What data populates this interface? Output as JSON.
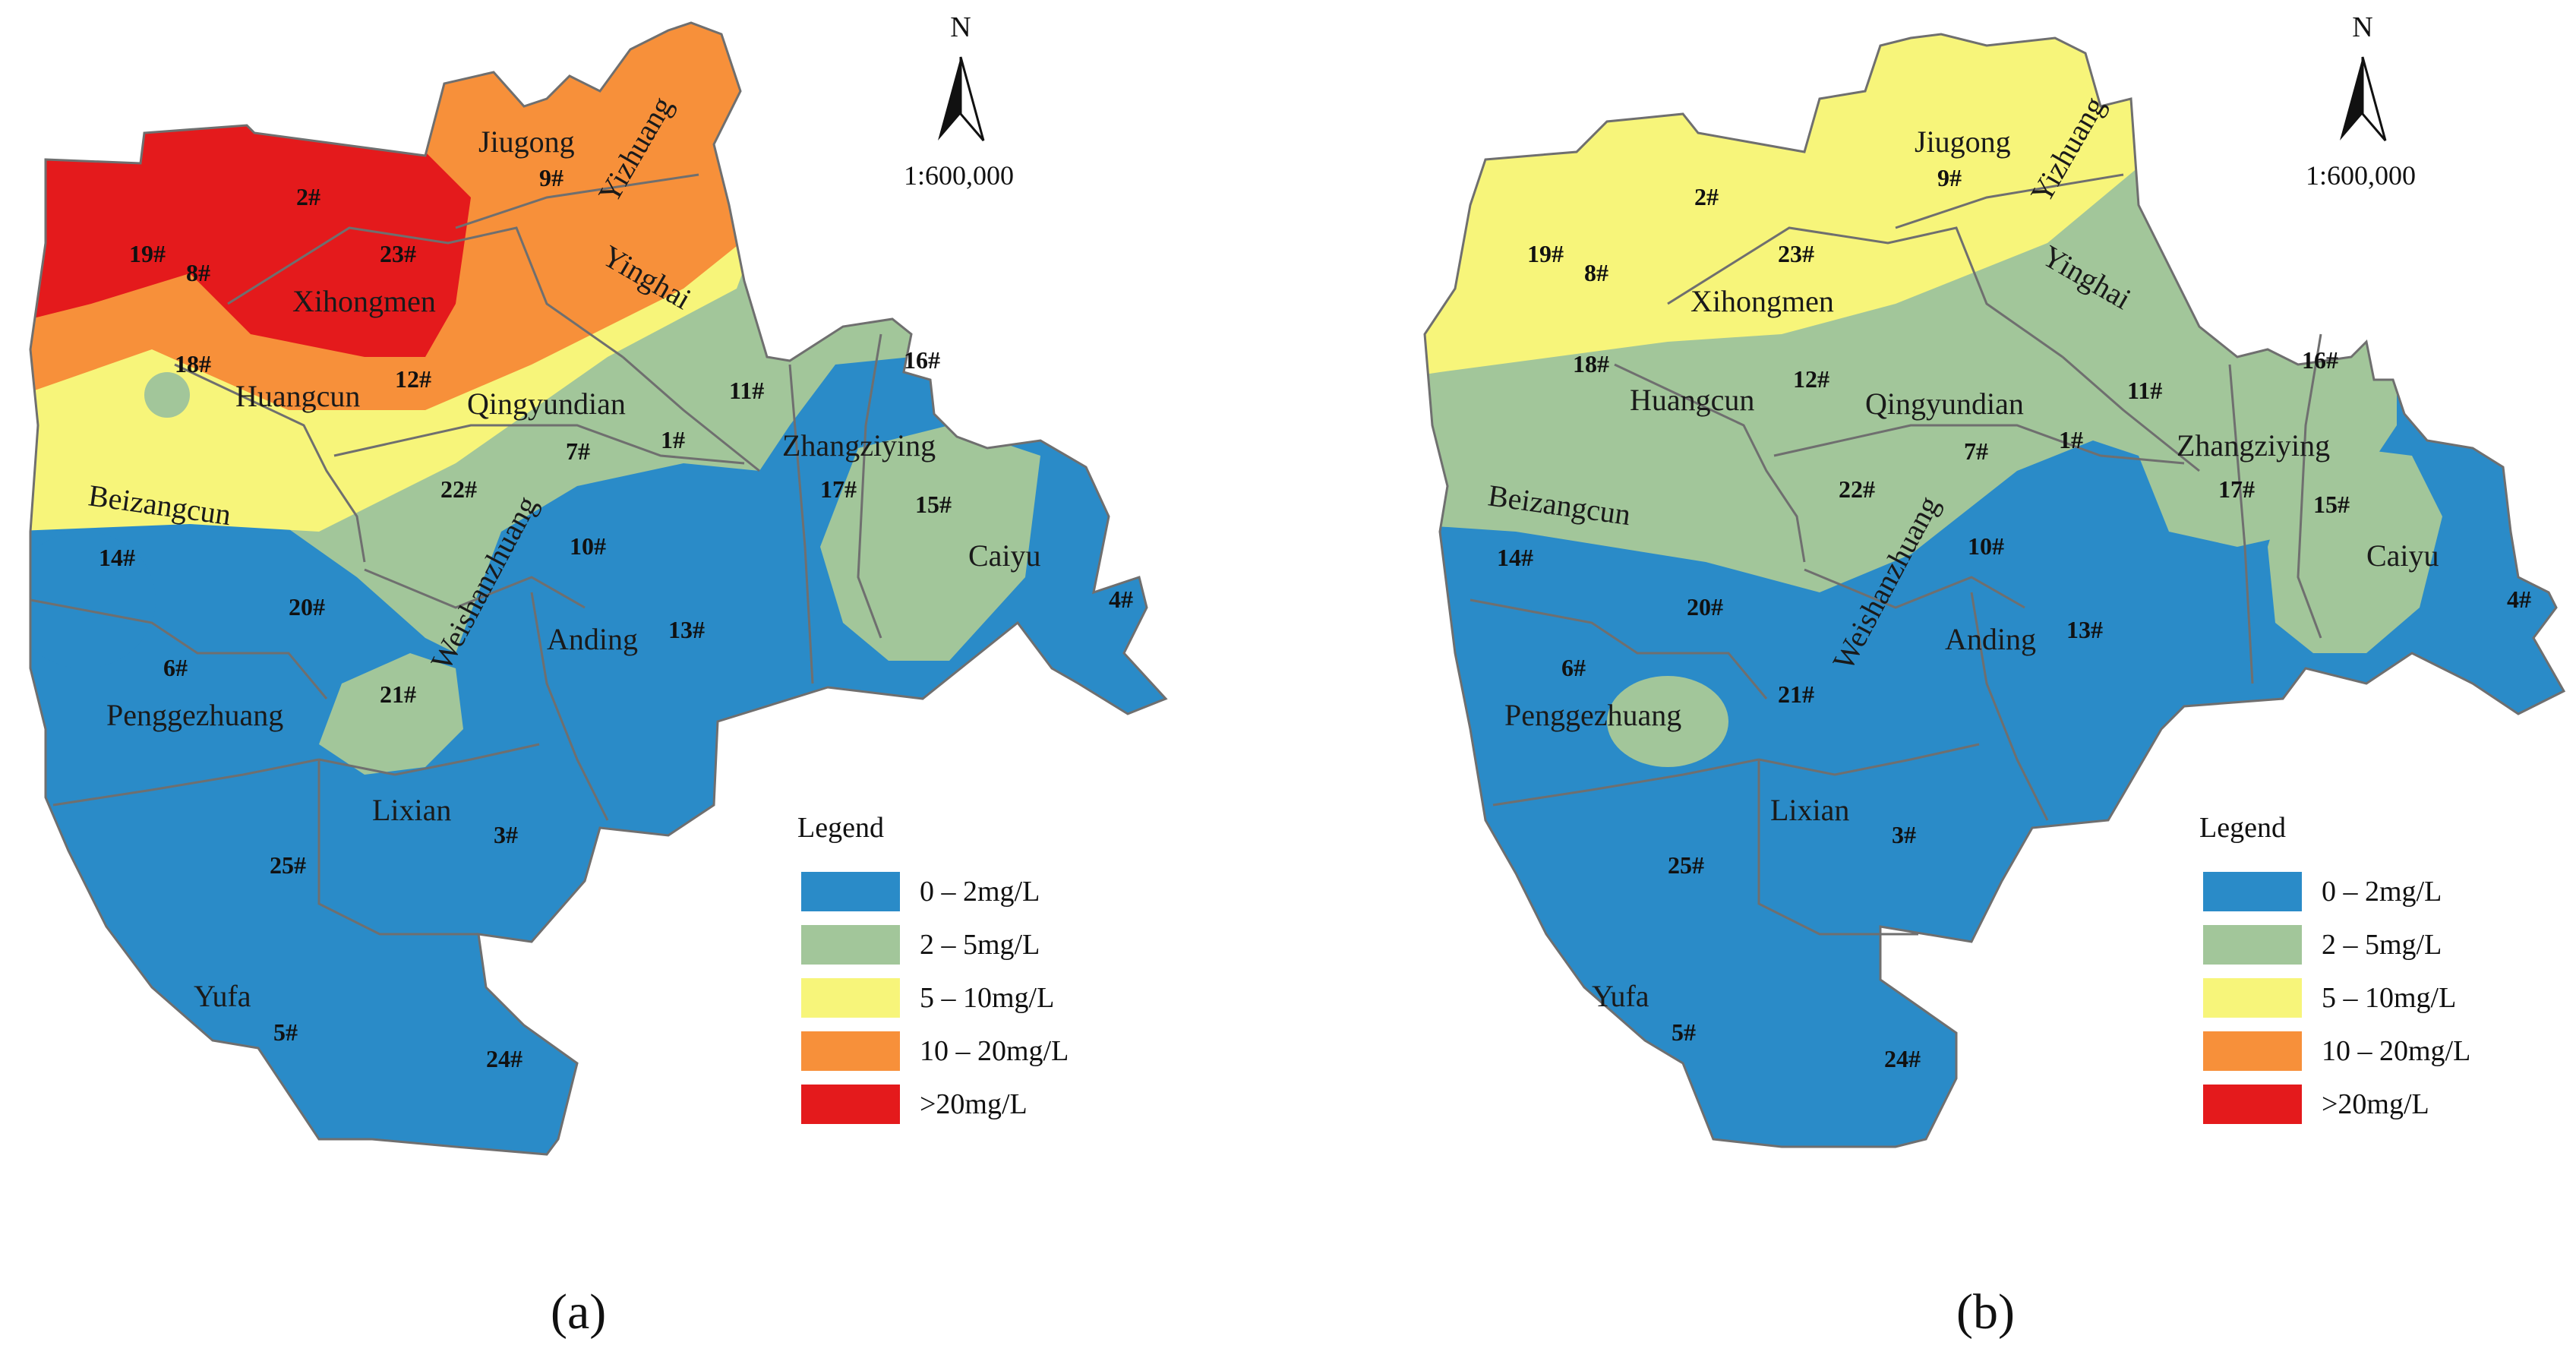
{
  "panels": [
    {
      "id": "a",
      "caption": "(a)",
      "north_label": "N",
      "scale_label": "1:600,000",
      "legend": {
        "title": "Legend",
        "items": [
          {
            "label": "0 – 2mg/L",
            "color": "#2a8bc8"
          },
          {
            "label": "2 – 5mg/L",
            "color": "#a2c69a"
          },
          {
            "label": "5 – 10mg/L",
            "color": "#f7f57a"
          },
          {
            "label": "10 – 20mg/L",
            "color": "#f7903a"
          },
          {
            "label": ">20mg/L",
            "color": "#e41a1c"
          }
        ]
      },
      "towns": [
        "Jiugong",
        "Yizhuang",
        "Yinghai",
        "Xihongmen",
        "Huangcun",
        "Qingyundian",
        "Zhangziying",
        "Beizangcun",
        "Caiyu",
        "Weishanzhuang",
        "Anding",
        "Penggezhuang",
        "Lixian",
        "Yufa"
      ],
      "wells": [
        "19#",
        "8#",
        "2#",
        "23#",
        "9#",
        "18#",
        "12#",
        "11#",
        "16#",
        "1#",
        "7#",
        "17#",
        "15#",
        "22#",
        "14#",
        "10#",
        "20#",
        "13#",
        "4#",
        "6#",
        "21#",
        "3#",
        "25#",
        "5#",
        "24#"
      ]
    },
    {
      "id": "b",
      "caption": "(b)",
      "north_label": "N",
      "scale_label": "1:600,000",
      "legend": {
        "title": "Legend",
        "items": [
          {
            "label": "0 – 2mg/L",
            "color": "#2a8bc8"
          },
          {
            "label": "2 – 5mg/L",
            "color": "#a2c69a"
          },
          {
            "label": "5 – 10mg/L",
            "color": "#f7f57a"
          },
          {
            "label": "10 – 20mg/L",
            "color": "#f7903a"
          },
          {
            "label": ">20mg/L",
            "color": "#e41a1c"
          }
        ]
      },
      "towns": [
        "Jiugong",
        "Yizhuang",
        "Yinghai",
        "Xihongmen",
        "Huangcun",
        "Qingyundian",
        "Zhangziying",
        "Beizangcun",
        "Caiyu",
        "Weishanzhuang",
        "Anding",
        "Penggezhuang",
        "Lixian",
        "Yufa"
      ],
      "wells": [
        "19#",
        "8#",
        "2#",
        "23#",
        "9#",
        "18#",
        "12#",
        "11#",
        "16#",
        "1#",
        "7#",
        "17#",
        "15#",
        "22#",
        "14#",
        "10#",
        "20#",
        "13#",
        "4#",
        "6#",
        "21#",
        "3#",
        "25#",
        "5#",
        "24#"
      ]
    }
  ]
}
